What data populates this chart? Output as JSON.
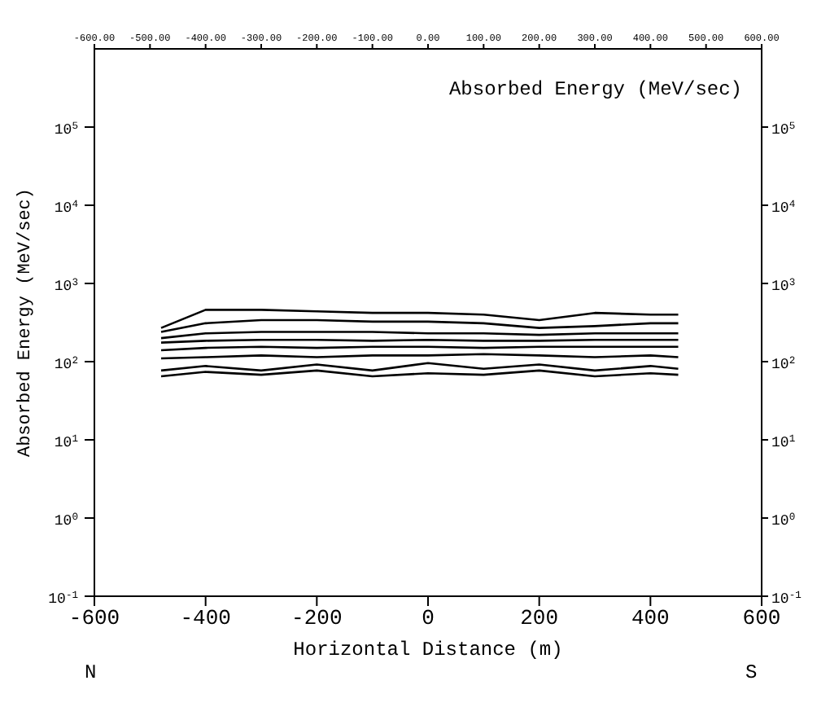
{
  "chart_data": {
    "type": "line",
    "title": "Absorbed Energy (MeV/sec)",
    "xlabel": "Horizontal Distance (m)",
    "ylabel": "Absorbed Energy (MeV/sec)",
    "log": "y",
    "grid": false,
    "line_style": "solid",
    "x": [
      -480,
      -400,
      -300,
      -200,
      -100,
      0,
      100,
      200,
      300,
      400,
      450
    ],
    "series": [
      {
        "color": "#000000",
        "values": [
          270,
          460,
          460,
          440,
          420,
          420,
          400,
          340,
          420,
          400,
          400
        ]
      },
      {
        "color": "#000000",
        "values": [
          240,
          310,
          340,
          340,
          325,
          325,
          310,
          270,
          285,
          310,
          310
        ]
      },
      {
        "color": "#000000",
        "values": [
          200,
          230,
          240,
          240,
          240,
          230,
          230,
          220,
          230,
          230,
          230
        ]
      },
      {
        "color": "#000000",
        "values": [
          175,
          185,
          190,
          190,
          185,
          190,
          185,
          185,
          190,
          190,
          190
        ]
      },
      {
        "color": "#000000",
        "values": [
          140,
          150,
          155,
          150,
          155,
          155,
          150,
          155,
          155,
          155,
          155
        ]
      },
      {
        "color": "#000000",
        "values": [
          110,
          114,
          120,
          114,
          120,
          120,
          125,
          120,
          114,
          120,
          114
        ]
      },
      {
        "color": "#000000",
        "values": [
          77,
          88,
          77,
          92,
          77,
          96,
          81,
          92,
          77,
          88,
          81
        ]
      },
      {
        "color": "#000000",
        "values": [
          65,
          74,
          68,
          77,
          65,
          71,
          68,
          77,
          65,
          71,
          68
        ]
      }
    ],
    "xlim": [
      -600,
      600
    ],
    "xticks": [
      -600,
      -400,
      -200,
      0,
      200,
      400,
      600
    ],
    "x2lim": [
      -600,
      600
    ],
    "x2ticks": [
      {
        "value": -600,
        "label": "-600.00"
      },
      {
        "value": -500,
        "label": "-500.00"
      },
      {
        "value": -400,
        "label": "-400.00"
      },
      {
        "value": -300,
        "label": "-300.00"
      },
      {
        "value": -200,
        "label": "-200.00"
      },
      {
        "value": -100,
        "label": "-100.00"
      },
      {
        "value": 0,
        "label": "0.00"
      },
      {
        "value": 100,
        "label": "100.00"
      },
      {
        "value": 200,
        "label": "200.00"
      },
      {
        "value": 300,
        "label": "300.00"
      },
      {
        "value": 400,
        "label": "400.00"
      },
      {
        "value": 500,
        "label": "500.00"
      },
      {
        "value": 600,
        "label": "600.00"
      }
    ],
    "ylim": [
      0.1,
      1000000
    ],
    "yticks": [
      {
        "value": 0.1,
        "label": "10$^{-1}$"
      },
      {
        "value": 1,
        "label": "10$^{0}$"
      },
      {
        "value": 10,
        "label": "10$^{1}$"
      },
      {
        "value": 100,
        "label": "10$^{2}$"
      },
      {
        "value": 1000,
        "label": "10$^{3}$"
      },
      {
        "value": 10000,
        "label": "10$^{4}$"
      },
      {
        "value": 100000,
        "label": "10$^{5}$"
      }
    ],
    "annotations": [
      "N",
      "S"
    ]
  }
}
